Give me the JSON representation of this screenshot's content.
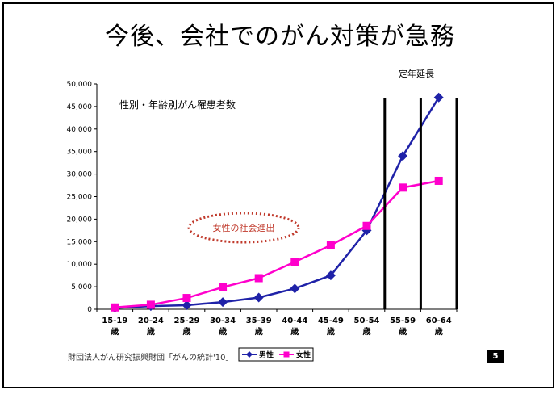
{
  "slide": {
    "title": "今後、会社でのがん対策が急務",
    "source": "財団法人がん研究振興財団「がんの統計'10」",
    "page_number": "5"
  },
  "chart_data": {
    "type": "line",
    "title": "性別・年齢別がん罹患者数",
    "categories": [
      "15-19",
      "20-24",
      "25-29",
      "30-34",
      "35-39",
      "40-44",
      "45-49",
      "50-54",
      "55-59",
      "60-64"
    ],
    "category_suffix": "歳",
    "ylim": [
      0,
      50000
    ],
    "yticks": [
      "0",
      "5,000",
      "10,000",
      "15,000",
      "20,000",
      "25,000",
      "30,000",
      "35,000",
      "40,000",
      "45,000",
      "50,000"
    ],
    "series": [
      {
        "name": "男性",
        "color": "#1f22a8",
        "marker": "diamond",
        "values": [
          300,
          700,
          900,
          1600,
          2600,
          4600,
          7500,
          17500,
          34000,
          47000
        ]
      },
      {
        "name": "女性",
        "color": "#ff00cc",
        "marker": "square",
        "values": [
          400,
          1000,
          2500,
          4900,
          6900,
          10500,
          14200,
          18500,
          27000,
          28500
        ]
      }
    ],
    "legend_position": "bottom",
    "annotations": {
      "retirement_label": "定年延長",
      "women_label": "女性の社会進出"
    },
    "colors": {
      "annotation_text": "#c0392b",
      "annotation_ellipse": "#c0392b"
    }
  }
}
